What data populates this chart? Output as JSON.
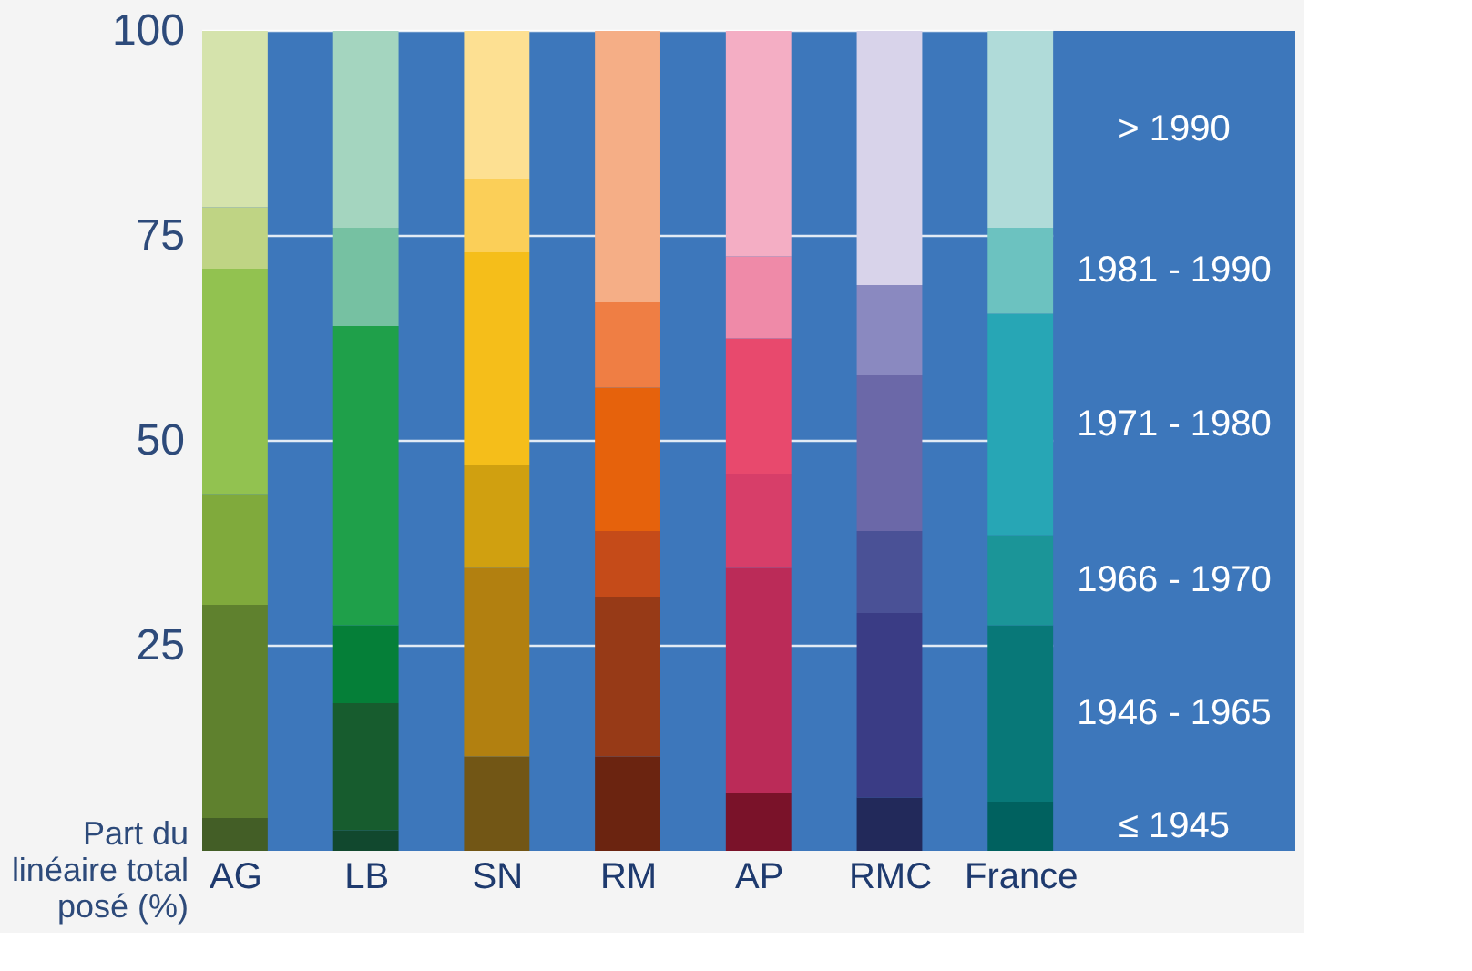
{
  "chart_data": {
    "type": "bar",
    "stacked": true,
    "categories": [
      "AG",
      "LB",
      "SN",
      "RM",
      "AP",
      "RMC",
      "France"
    ],
    "ylabel": "Part du\nlinéaire total\nposé (%)",
    "ylim": [
      0,
      100
    ],
    "yticks": [
      25,
      50,
      75,
      100
    ],
    "grid": "y",
    "legend": "right",
    "series": [
      {
        "name": "≤ 1945",
        "values": [
          4,
          2.5,
          11.5,
          11.5,
          7,
          6.5,
          6
        ],
        "colors": [
          "#435e26",
          "#11482e",
          "#725615",
          "#6b2410",
          "#7a1229",
          "#22295a",
          "#00615f"
        ]
      },
      {
        "name": "1946 - 1965",
        "values": [
          26,
          15.5,
          23,
          19.5,
          27.5,
          22.5,
          21.5
        ],
        "colors": [
          "#5f812e",
          "#175c2e",
          "#b28010",
          "#973a17",
          "#bb2b58",
          "#3a3c85",
          "#087878"
        ]
      },
      {
        "name": "1966 - 1970",
        "values": [
          13.5,
          9.5,
          12.5,
          8,
          11.5,
          10,
          11
        ],
        "colors": [
          "#80aa3c",
          "#057f38",
          "#d0a010",
          "#c54b19",
          "#d73e69",
          "#4a5196",
          "#1b9598"
        ]
      },
      {
        "name": "1971 - 1980",
        "values": [
          27.5,
          36.5,
          26,
          17.5,
          16.5,
          19,
          27
        ],
        "colors": [
          "#92c250",
          "#1fa04a",
          "#f5be1a",
          "#e6620c",
          "#e8496d",
          "#6b68a8",
          "#27a6b5"
        ]
      },
      {
        "name": "1981 - 1990",
        "values": [
          7.5,
          12,
          9,
          10.5,
          10,
          11,
          10.5
        ],
        "colors": [
          "#bfd484",
          "#76c1a2",
          "#fbcf58",
          "#ef7e44",
          "#ef8aa8",
          "#8a89c0",
          "#6cc2c0"
        ]
      },
      {
        "name": "> 1990",
        "values": [
          21.5,
          24,
          18,
          33,
          27.5,
          31,
          24
        ],
        "colors": [
          "#d5e3ac",
          "#a4d5bf",
          "#fde092",
          "#f5ae86",
          "#f4aec4",
          "#d8d3ea",
          "#b0dbd9"
        ]
      }
    ]
  }
}
